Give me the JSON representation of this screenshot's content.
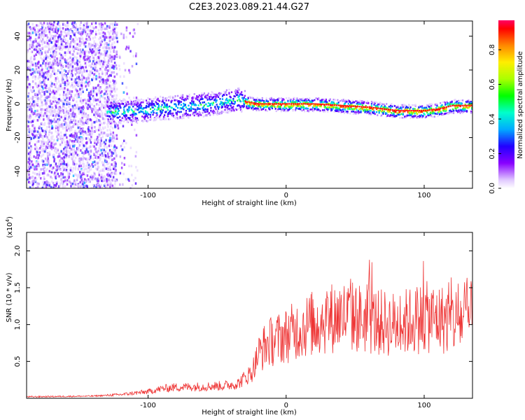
{
  "title": "C2E3.2023.089.21.44.G27",
  "chart_data": [
    {
      "type": "heatmap",
      "xlabel": "Height of straight line (km)",
      "ylabel": "Frequency (Hz)",
      "xlim": [
        -188,
        135
      ],
      "ylim": [
        -50,
        49
      ],
      "x_ticks": [
        "-100",
        "0",
        "100"
      ],
      "y_ticks": [
        "-40",
        "-20",
        "0",
        "20",
        "40"
      ],
      "colorbar": {
        "label": "Normalized spectral amplitude",
        "range": [
          0.0,
          0.97
        ],
        "ticks": [
          "0.0",
          "0.2",
          "0.4",
          "0.6",
          "0.8"
        ]
      },
      "ridge": {
        "x": [
          -110,
          -90,
          -70,
          -50,
          -35,
          -28,
          -20,
          -10,
          0,
          20,
          40,
          60,
          80,
          90,
          100,
          110,
          120,
          135
        ],
        "y": [
          -4,
          -2,
          -1,
          1,
          3,
          1,
          0,
          0,
          0,
          0,
          -1,
          -2,
          -4,
          -4,
          -4,
          -3,
          -1,
          -1
        ]
      }
    },
    {
      "type": "line",
      "xlabel": "Height of straight line (km)",
      "ylabel": "SNR (10 * v/v)",
      "y_multiplier": "(x10",
      "y_multiplier_exp": "4",
      "y_multiplier_close": ")",
      "xlim": [
        -188,
        135
      ],
      "ylim": [
        0,
        2.25
      ],
      "x_ticks": [
        "-100",
        "0",
        "100"
      ],
      "y_ticks": [
        "0.5",
        "1.0",
        "1.5",
        "2.0"
      ],
      "color": "#ee3333",
      "envelope": {
        "x": [
          -188,
          -140,
          -120,
          -100,
          -90,
          -80,
          -60,
          -45,
          -35,
          -25,
          -20,
          -15,
          -10,
          0,
          10,
          20,
          30,
          40,
          50,
          60,
          70,
          80,
          90,
          100,
          110,
          120,
          135
        ],
        "y": [
          0.02,
          0.03,
          0.05,
          0.09,
          0.13,
          0.15,
          0.16,
          0.17,
          0.2,
          0.35,
          0.6,
          0.72,
          0.78,
          0.85,
          0.95,
          1.02,
          1.08,
          1.12,
          1.1,
          1.05,
          1.02,
          1.0,
          1.05,
          1.1,
          1.08,
          1.05,
          1.1
        ]
      }
    }
  ]
}
